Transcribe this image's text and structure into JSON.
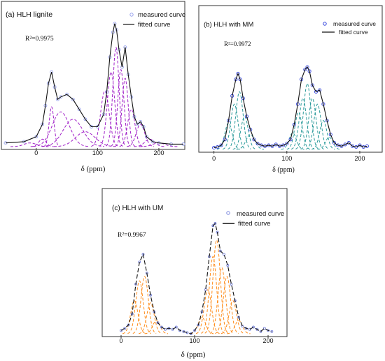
{
  "chart_data": [
    {
      "type": "line",
      "title": "(a)  HLH lignite",
      "xlabel": "δ (ppm)",
      "r2": "R²=0.9975",
      "xlim": [
        -50,
        240
      ],
      "xticks": [
        0,
        100,
        200
      ],
      "legend": {
        "placement": "top-right",
        "measured": "measured curve",
        "fitted": "fitted curve"
      },
      "colors": {
        "measured": "#9aa4ee",
        "fitted": "#111111",
        "components": "#a020c8"
      },
      "series": [
        {
          "name": "measured curve",
          "x": [
            -50,
            -20,
            0,
            10,
            15,
            20,
            25,
            30,
            35,
            40,
            50,
            60,
            70,
            80,
            90,
            100,
            110,
            115,
            120,
            125,
            128,
            131,
            135,
            140,
            145,
            150,
            155,
            160,
            165,
            170,
            175,
            180,
            190,
            200,
            220,
            240
          ],
          "y": [
            0.03,
            0.04,
            0.08,
            0.18,
            0.33,
            0.51,
            0.6,
            0.48,
            0.38,
            0.4,
            0.42,
            0.38,
            0.3,
            0.22,
            0.16,
            0.16,
            0.26,
            0.44,
            0.72,
            0.92,
            0.99,
            0.94,
            0.78,
            0.64,
            0.8,
            0.58,
            0.4,
            0.24,
            0.18,
            0.2,
            0.16,
            0.08,
            0.04,
            0.03,
            0.02,
            0.02
          ]
        },
        {
          "name": "fitted curve",
          "x": [
            -50,
            -20,
            0,
            10,
            15,
            20,
            25,
            30,
            35,
            40,
            50,
            60,
            70,
            80,
            90,
            100,
            110,
            115,
            120,
            125,
            128,
            131,
            135,
            140,
            145,
            150,
            155,
            160,
            165,
            170,
            175,
            180,
            190,
            200,
            220,
            240
          ],
          "y": [
            0.03,
            0.04,
            0.08,
            0.18,
            0.33,
            0.51,
            0.6,
            0.48,
            0.38,
            0.4,
            0.42,
            0.38,
            0.3,
            0.22,
            0.16,
            0.16,
            0.26,
            0.44,
            0.72,
            0.92,
            0.99,
            0.94,
            0.78,
            0.64,
            0.8,
            0.58,
            0.4,
            0.24,
            0.18,
            0.2,
            0.16,
            0.08,
            0.04,
            0.03,
            0.02,
            0.02
          ]
        }
      ],
      "components": [
        {
          "c": 25,
          "h": 0.32,
          "w": 4
        },
        {
          "c": 40,
          "h": 0.28,
          "w": 14
        },
        {
          "c": 60,
          "h": 0.22,
          "w": 16
        },
        {
          "c": 80,
          "h": 0.12,
          "w": 16
        },
        {
          "c": 112,
          "h": 0.45,
          "w": 7
        },
        {
          "c": 122,
          "h": 0.6,
          "w": 6
        },
        {
          "c": 130,
          "h": 0.8,
          "w": 5
        },
        {
          "c": 138,
          "h": 0.62,
          "w": 5
        },
        {
          "c": 145,
          "h": 0.55,
          "w": 5
        },
        {
          "c": 155,
          "h": 0.3,
          "w": 6
        },
        {
          "c": 170,
          "h": 0.18,
          "w": 7
        },
        {
          "c": 185,
          "h": 0.06,
          "w": 8
        },
        {
          "c": -10,
          "h": 0.03,
          "w": 10
        },
        {
          "c": 10,
          "h": 0.06,
          "w": 6
        },
        {
          "c": 200,
          "h": 0.03,
          "w": 10
        }
      ]
    },
    {
      "type": "line",
      "title": "(b)   HLH with  MM",
      "xlabel": "δ (ppm)",
      "r2": "R²=0.9972",
      "xlim": [
        -15,
        225
      ],
      "xticks": [
        0,
        100,
        200
      ],
      "legend": {
        "placement": "top-right",
        "measured": "measured curve",
        "fitted": "fitted curve"
      },
      "colors": {
        "measured": "#3344dd",
        "fitted": "#111111",
        "components": "#2a9a9a"
      },
      "series": [
        {
          "name": "measured curve",
          "x": [
            0,
            5,
            10,
            15,
            20,
            25,
            30,
            33,
            36,
            40,
            45,
            50,
            55,
            60,
            65,
            70,
            75,
            80,
            85,
            90,
            95,
            100,
            105,
            110,
            115,
            120,
            125,
            128,
            131,
            135,
            140,
            145,
            150,
            155,
            160,
            165,
            170,
            175,
            180,
            185,
            190,
            195,
            200,
            205,
            210
          ],
          "y": [
            0.02,
            0.03,
            0.05,
            0.12,
            0.35,
            0.65,
            0.85,
            0.92,
            0.85,
            0.62,
            0.4,
            0.24,
            0.12,
            0.07,
            0.05,
            0.04,
            0.05,
            0.04,
            0.06,
            0.04,
            0.05,
            0.07,
            0.12,
            0.3,
            0.55,
            0.85,
            0.97,
            1.0,
            0.95,
            0.78,
            0.7,
            0.72,
            0.55,
            0.35,
            0.18,
            0.08,
            0.05,
            0.04,
            0.06,
            0.08,
            0.04,
            0.03,
            0.05,
            0.03,
            0.04
          ]
        },
        {
          "name": "fitted curve",
          "x": [
            0,
            5,
            10,
            15,
            20,
            25,
            30,
            33,
            36,
            40,
            45,
            50,
            55,
            60,
            65,
            70,
            75,
            80,
            85,
            90,
            95,
            100,
            105,
            110,
            115,
            120,
            125,
            128,
            131,
            135,
            140,
            145,
            150,
            155,
            160,
            165,
            170,
            175,
            180,
            185,
            190,
            195,
            200,
            205,
            210
          ],
          "y": [
            0.02,
            0.03,
            0.05,
            0.12,
            0.35,
            0.65,
            0.85,
            0.92,
            0.85,
            0.62,
            0.4,
            0.24,
            0.12,
            0.07,
            0.05,
            0.04,
            0.05,
            0.04,
            0.06,
            0.04,
            0.05,
            0.07,
            0.12,
            0.3,
            0.55,
            0.85,
            0.97,
            1.0,
            0.95,
            0.78,
            0.7,
            0.72,
            0.55,
            0.35,
            0.18,
            0.08,
            0.05,
            0.04,
            0.06,
            0.08,
            0.04,
            0.03,
            0.05,
            0.03,
            0.04
          ]
        }
      ],
      "components": [
        {
          "c": 20,
          "h": 0.32,
          "w": 5
        },
        {
          "c": 28,
          "h": 0.55,
          "w": 5
        },
        {
          "c": 35,
          "h": 0.7,
          "w": 5
        },
        {
          "c": 42,
          "h": 0.4,
          "w": 5
        },
        {
          "c": 50,
          "h": 0.18,
          "w": 6
        },
        {
          "c": 108,
          "h": 0.2,
          "w": 5
        },
        {
          "c": 116,
          "h": 0.45,
          "w": 5
        },
        {
          "c": 122,
          "h": 0.62,
          "w": 5
        },
        {
          "c": 128,
          "h": 0.8,
          "w": 5
        },
        {
          "c": 135,
          "h": 0.62,
          "w": 5
        },
        {
          "c": 142,
          "h": 0.55,
          "w": 5
        },
        {
          "c": 150,
          "h": 0.35,
          "w": 5
        },
        {
          "c": 158,
          "h": 0.15,
          "w": 5
        }
      ]
    },
    {
      "type": "line",
      "title": "(c)  HLH with UM",
      "xlabel": "δ (ppm)",
      "r2": "R²=0.9967",
      "xlim": [
        -20,
        220
      ],
      "xticks": [
        0,
        100,
        200
      ],
      "legend": {
        "placement": "top-right",
        "measured": "measured curve",
        "fitted": "fitted curve"
      },
      "colors": {
        "measured": "#7a86dd",
        "fitted": "#111111",
        "components": "#ff8c1a"
      },
      "series": [
        {
          "name": "measured curve",
          "x": [
            0,
            5,
            10,
            15,
            20,
            25,
            30,
            35,
            40,
            45,
            50,
            55,
            60,
            65,
            70,
            75,
            80,
            85,
            90,
            95,
            100,
            105,
            110,
            115,
            120,
            125,
            128,
            131,
            135,
            140,
            145,
            150,
            155,
            160,
            165,
            170,
            175,
            180,
            185,
            190,
            195,
            200,
            205
          ],
          "y": [
            0.03,
            0.05,
            0.08,
            0.18,
            0.45,
            0.65,
            0.72,
            0.55,
            0.35,
            0.2,
            0.1,
            0.06,
            0.04,
            0.05,
            0.04,
            0.06,
            0.03,
            0.02,
            0.01,
            0.0,
            0.03,
            0.08,
            0.2,
            0.4,
            0.7,
            0.98,
            1.0,
            0.92,
            0.75,
            0.72,
            0.62,
            0.45,
            0.3,
            0.15,
            0.07,
            0.05,
            0.04,
            0.06,
            0.04,
            0.02,
            0.05,
            0.03,
            0.02
          ]
        },
        {
          "name": "fitted curve",
          "x": [
            0,
            5,
            10,
            15,
            20,
            25,
            30,
            35,
            40,
            45,
            50,
            55,
            60,
            65,
            70,
            75,
            80,
            85,
            90,
            95,
            100,
            105,
            110,
            115,
            120,
            125,
            128,
            131,
            135,
            140,
            145,
            150,
            155,
            160,
            165,
            170,
            175,
            180,
            185,
            190,
            195,
            200,
            205
          ],
          "y": [
            0.03,
            0.05,
            0.08,
            0.18,
            0.45,
            0.65,
            0.72,
            0.55,
            0.35,
            0.2,
            0.1,
            0.06,
            0.04,
            0.05,
            0.04,
            0.06,
            0.03,
            0.02,
            0.01,
            0.0,
            0.03,
            0.08,
            0.2,
            0.4,
            0.7,
            0.98,
            1.0,
            0.92,
            0.75,
            0.72,
            0.62,
            0.45,
            0.3,
            0.15,
            0.07,
            0.05,
            0.04,
            0.06,
            0.04,
            0.02,
            0.05,
            0.03,
            0.02
          ]
        }
      ],
      "components": [
        {
          "c": 18,
          "h": 0.3,
          "w": 5
        },
        {
          "c": 25,
          "h": 0.48,
          "w": 5
        },
        {
          "c": 32,
          "h": 0.52,
          "w": 5
        },
        {
          "c": 40,
          "h": 0.28,
          "w": 5
        },
        {
          "c": 48,
          "h": 0.12,
          "w": 5
        },
        {
          "c": 110,
          "h": 0.15,
          "w": 5
        },
        {
          "c": 118,
          "h": 0.4,
          "w": 5
        },
        {
          "c": 125,
          "h": 0.7,
          "w": 5
        },
        {
          "c": 130,
          "h": 0.85,
          "w": 5
        },
        {
          "c": 137,
          "h": 0.6,
          "w": 5
        },
        {
          "c": 144,
          "h": 0.52,
          "w": 5
        },
        {
          "c": 152,
          "h": 0.3,
          "w": 5
        },
        {
          "c": 160,
          "h": 0.12,
          "w": 5
        }
      ]
    }
  ]
}
